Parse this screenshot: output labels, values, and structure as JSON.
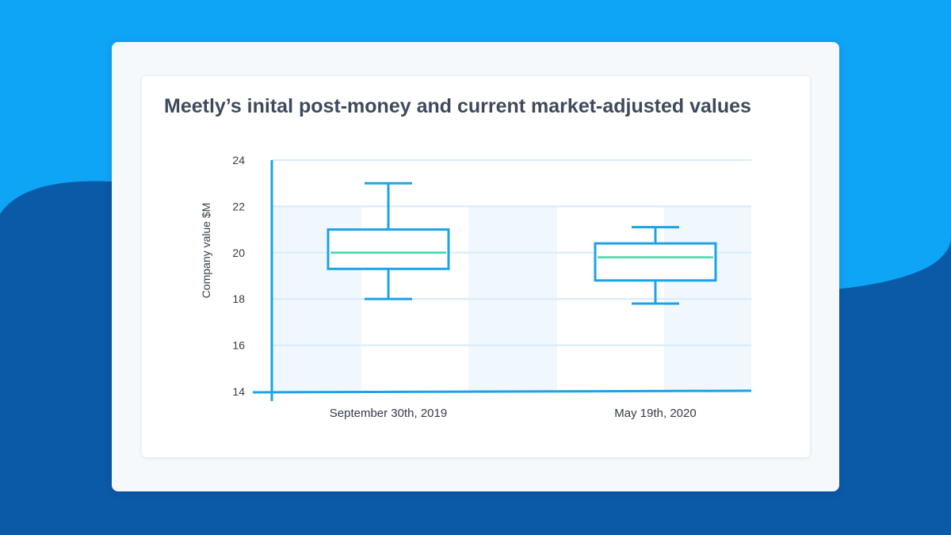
{
  "colors": {
    "background_top": "#0ea5f7",
    "background_wave": "#0b5aa8",
    "outer_card": "#f5f9fc",
    "inner_card": "#ffffff",
    "axis": "#1aa3e8",
    "box_stroke": "#1ba3ea",
    "median": "#3dd9a8",
    "grid": "#d5ebf9",
    "band": "#eef6fd",
    "text": "#333c48",
    "title": "#3e4a5c"
  },
  "chart_data": {
    "type": "box",
    "title": "Meetly’s inital post-money and current market-adjusted values",
    "xlabel": "",
    "ylabel": "Company value $M",
    "ylim": [
      14,
      24
    ],
    "yticks": [
      14,
      16,
      18,
      20,
      22,
      24
    ],
    "grid": true,
    "categories": [
      "September 30th, 2019",
      "May 19th, 2020"
    ],
    "boxes": [
      {
        "category": "September 30th, 2019",
        "min": 18.0,
        "q1": 19.3,
        "median": 20.0,
        "q3": 21.0,
        "max": 23.0
      },
      {
        "category": "May 19th, 2020",
        "min": 17.8,
        "q1": 18.8,
        "median": 19.8,
        "q3": 20.4,
        "max": 21.1
      }
    ]
  }
}
